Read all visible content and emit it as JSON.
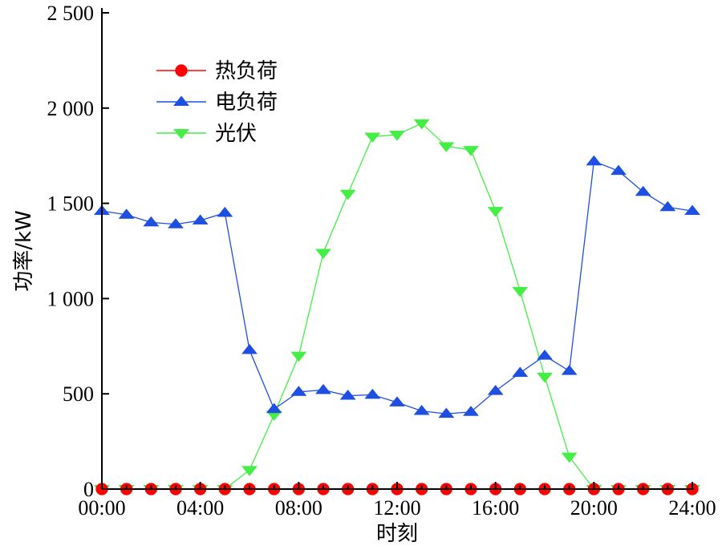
{
  "chart_data": {
    "type": "line",
    "xlabel": "时刻",
    "ylabel": "功率/kW",
    "xlim": [
      0,
      24
    ],
    "ylim": [
      0,
      2500
    ],
    "x_ticks": [
      0,
      4,
      8,
      12,
      16,
      20,
      24
    ],
    "x_tick_labels": [
      "00:00",
      "04:00",
      "08:00",
      "12:00",
      "16:00",
      "20:00",
      "24:00"
    ],
    "y_ticks": [
      0,
      500,
      1000,
      1500,
      2000,
      2500
    ],
    "y_tick_labels": [
      "0",
      "500",
      "1 000",
      "1 500",
      "2 000",
      "2 500"
    ],
    "grid": false,
    "legend_position": "top-left",
    "x": [
      0,
      1,
      2,
      3,
      4,
      5,
      6,
      7,
      8,
      9,
      10,
      11,
      12,
      13,
      14,
      15,
      16,
      17,
      18,
      19,
      20,
      21,
      22,
      23,
      24
    ],
    "series": [
      {
        "name": "热负荷",
        "color": "#ff0000",
        "marker": "circle",
        "values": [
          0,
          0,
          0,
          0,
          0,
          0,
          0,
          0,
          0,
          0,
          0,
          0,
          0,
          0,
          0,
          0,
          0,
          0,
          0,
          0,
          0,
          0,
          0,
          0,
          0
        ]
      },
      {
        "name": "电负荷",
        "color": "#1f4fe0",
        "marker": "triangle-up",
        "values": [
          1460,
          1440,
          1400,
          1390,
          1410,
          1450,
          730,
          420,
          510,
          520,
          490,
          495,
          455,
          410,
          395,
          405,
          515,
          610,
          700,
          620,
          1720,
          1670,
          1560,
          1480,
          1460
        ]
      },
      {
        "name": "光伏",
        "color": "#44ee44",
        "marker": "triangle-down",
        "values": [
          0,
          0,
          0,
          0,
          0,
          0,
          100,
          390,
          700,
          1240,
          1550,
          1850,
          1860,
          1920,
          1800,
          1780,
          1460,
          1040,
          590,
          170,
          0,
          0,
          0,
          0,
          0
        ]
      }
    ]
  }
}
